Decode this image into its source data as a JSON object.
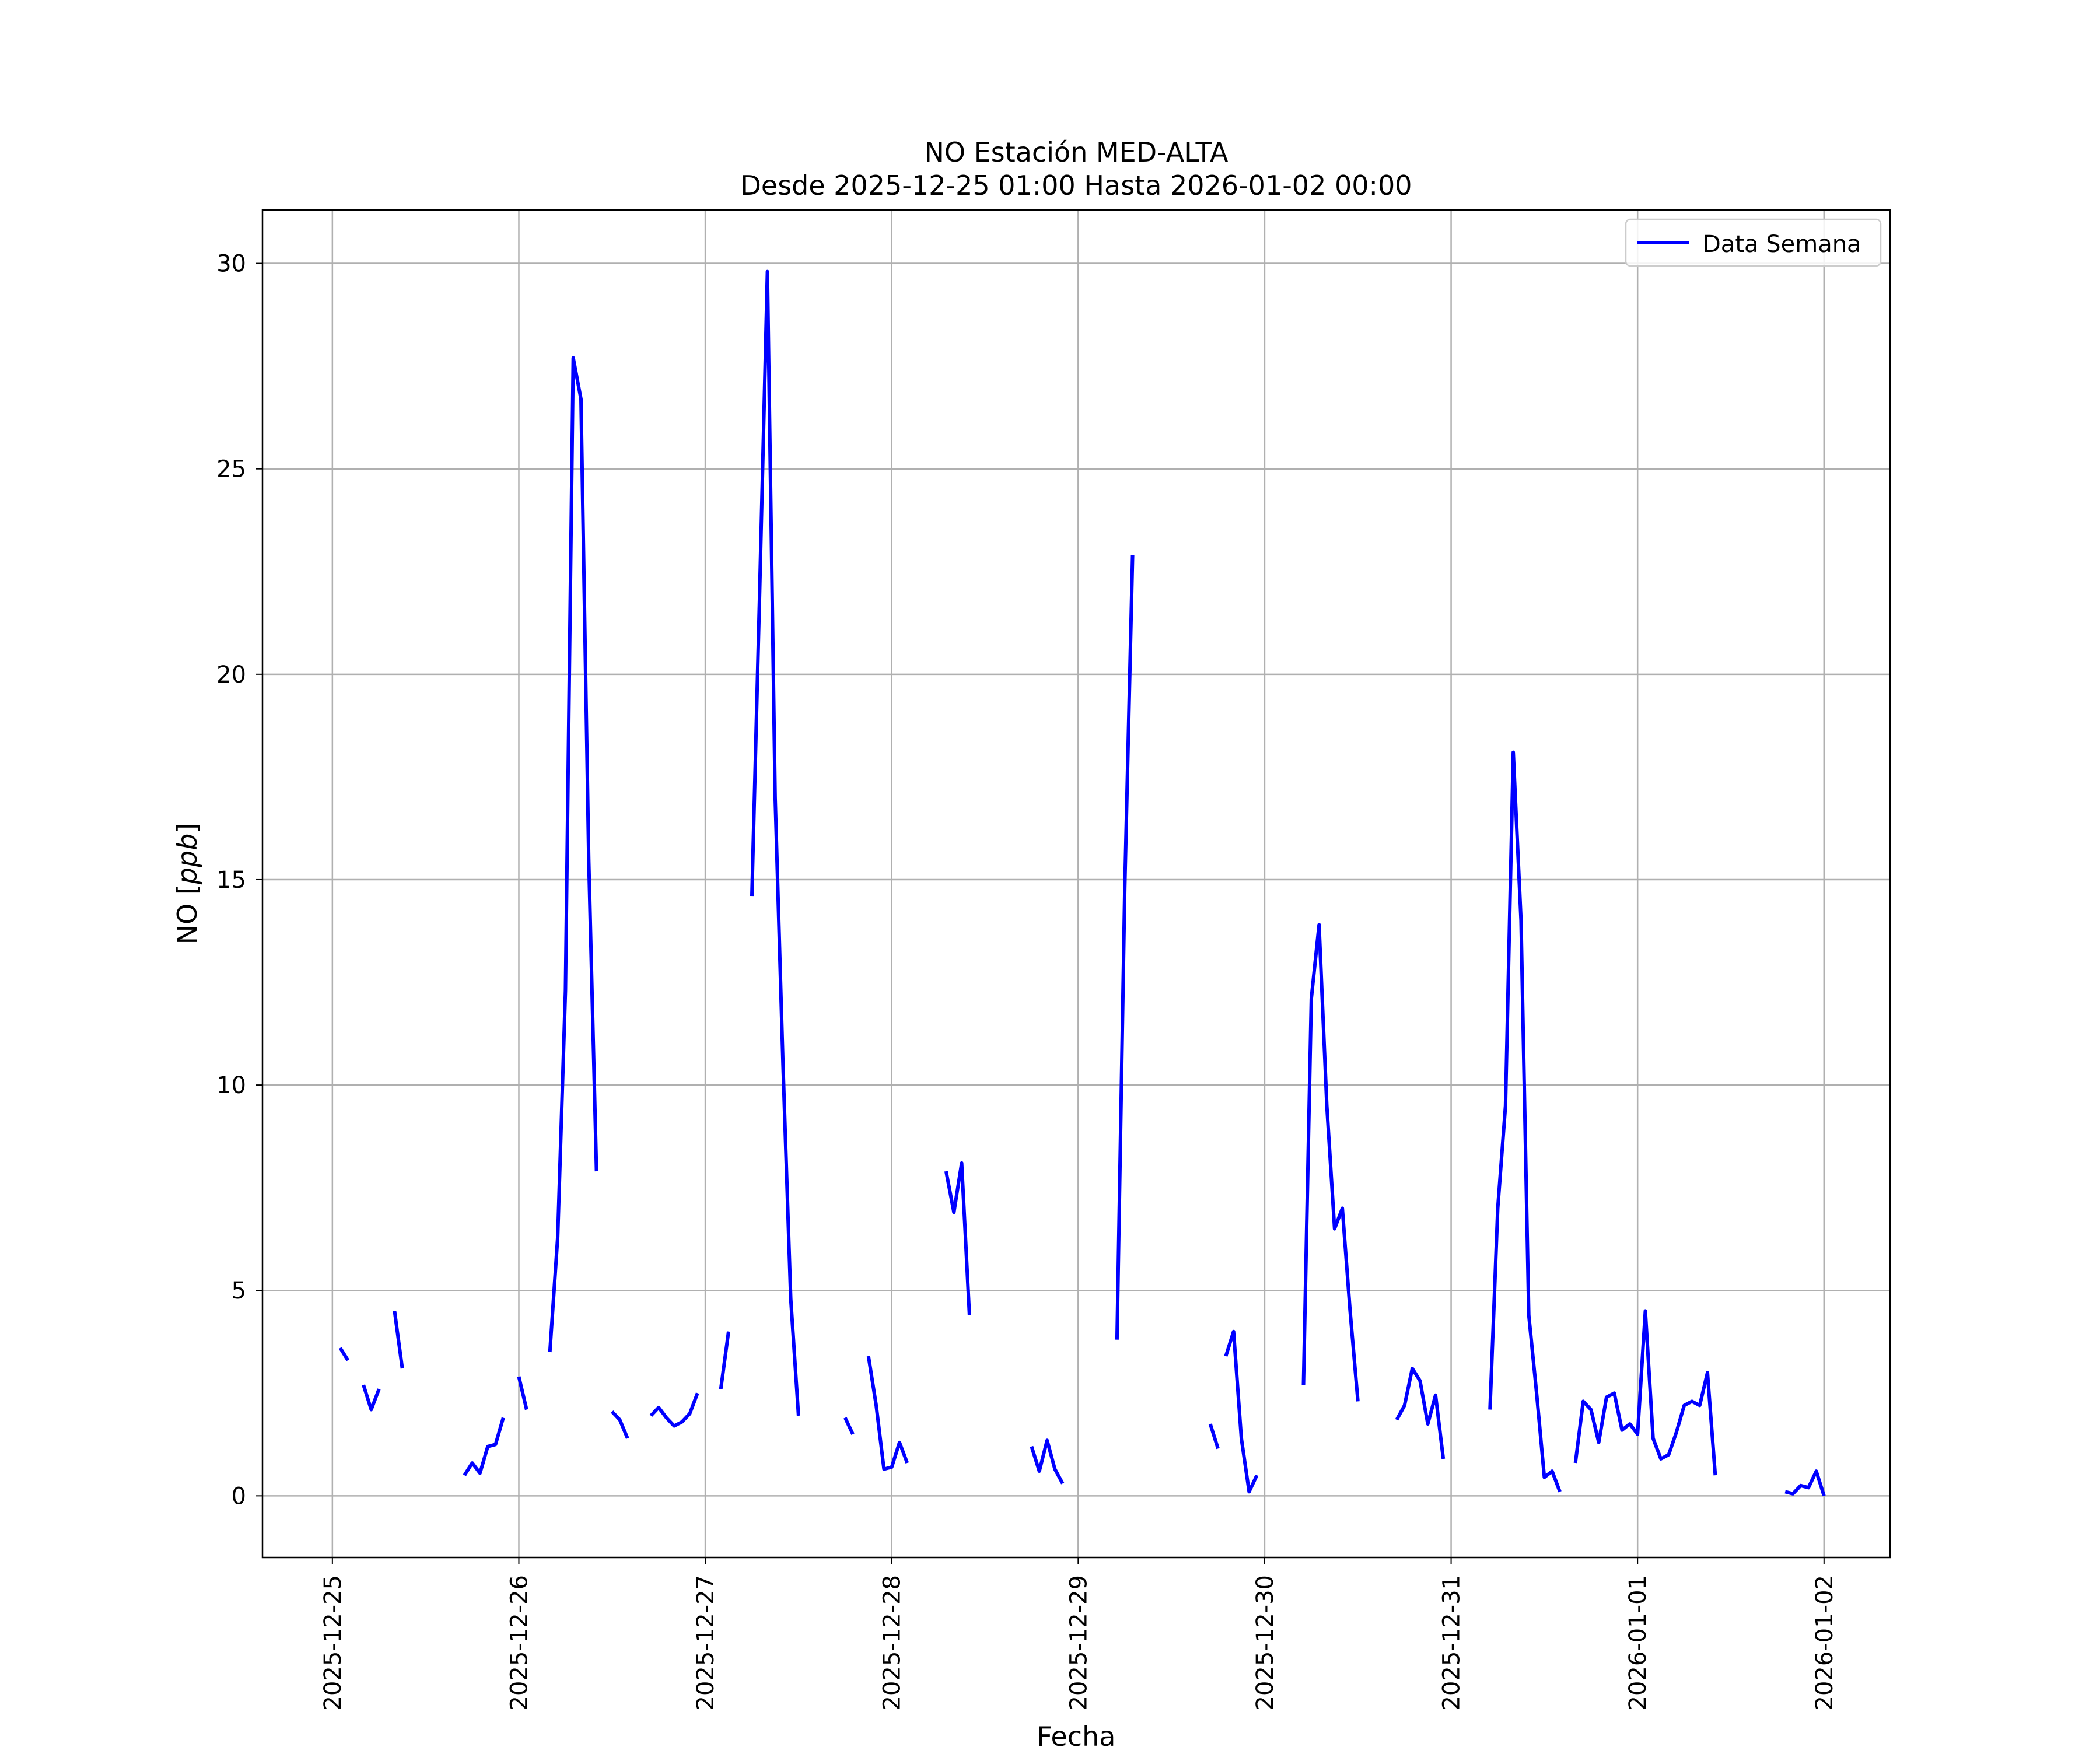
{
  "chart_data": {
    "type": "line",
    "title": "NO Estación MED-ALTA",
    "subtitle": "Desde 2025-12-25 01:00 Hasta 2026-01-02 00:00",
    "xlabel": "Fecha",
    "ylabel_prefix": "NO [",
    "ylabel_unit": "ppb",
    "ylabel_suffix": "]",
    "x_tick_labels": [
      "2025-12-25",
      "2025-12-26",
      "2025-12-27",
      "2025-12-28",
      "2025-12-29",
      "2025-12-30",
      "2025-12-31",
      "2026-01-01",
      "2026-01-02"
    ],
    "y_tick_labels": [
      "0",
      "5",
      "10",
      "15",
      "20",
      "25",
      "30"
    ],
    "y_ticks": [
      0,
      5,
      10,
      15,
      20,
      25,
      30
    ],
    "xlim": [
      "2025-12-24 15:00",
      "2026-01-02 08:30"
    ],
    "ylim": [
      -1.5,
      31.3
    ],
    "grid": true,
    "legend_position": "top-right",
    "series": [
      {
        "name": "Data Semana",
        "color": "#0000ff",
        "segments": [
          [
            [
              "2025-12-25 01:00",
              3.6
            ],
            [
              "2025-12-25 02:00",
              3.3
            ]
          ],
          [
            [
              "2025-12-25 04:00",
              2.7
            ],
            [
              "2025-12-25 05:00",
              2.1
            ],
            [
              "2025-12-25 06:00",
              2.6
            ]
          ],
          [
            [
              "2025-12-25 08:00",
              4.5
            ],
            [
              "2025-12-25 09:00",
              3.1
            ]
          ],
          [
            [
              "2025-12-25 17:00",
              0.5
            ],
            [
              "2025-12-25 18:00",
              0.8
            ],
            [
              "2025-12-25 19:00",
              0.55
            ],
            [
              "2025-12-25 20:00",
              1.2
            ],
            [
              "2025-12-25 21:00",
              1.25
            ],
            [
              "2025-12-25 22:00",
              1.9
            ]
          ],
          [
            [
              "2025-12-26 00:00",
              2.9
            ],
            [
              "2025-12-26 01:00",
              2.1
            ]
          ],
          [
            [
              "2025-12-26 04:00",
              3.5
            ],
            [
              "2025-12-26 05:00",
              6.3
            ],
            [
              "2025-12-26 06:00",
              12.3
            ],
            [
              "2025-12-26 07:00",
              27.7
            ],
            [
              "2025-12-26 08:00",
              26.7
            ],
            [
              "2025-12-26 09:00",
              15.5
            ],
            [
              "2025-12-26 10:00",
              7.9
            ]
          ],
          [
            [
              "2025-12-26 12:00",
              2.05
            ],
            [
              "2025-12-26 13:00",
              1.85
            ],
            [
              "2025-12-26 14:00",
              1.4
            ]
          ],
          [
            [
              "2025-12-26 17:00",
              1.95
            ],
            [
              "2025-12-26 18:00",
              2.15
            ],
            [
              "2025-12-26 19:00",
              1.9
            ],
            [
              "2025-12-26 20:00",
              1.7
            ],
            [
              "2025-12-26 21:00",
              1.8
            ],
            [
              "2025-12-26 22:00",
              2.0
            ],
            [
              "2025-12-26 23:00",
              2.5
            ]
          ],
          [
            [
              "2025-12-27 02:00",
              2.6
            ],
            [
              "2025-12-27 03:00",
              4.0
            ]
          ],
          [
            [
              "2025-12-27 06:00",
              14.6
            ],
            [
              "2025-12-27 07:00",
              22.0
            ],
            [
              "2025-12-27 08:00",
              29.8
            ],
            [
              "2025-12-27 09:00",
              17.0
            ],
            [
              "2025-12-27 10:00",
              10.5
            ],
            [
              "2025-12-27 11:00",
              4.8
            ],
            [
              "2025-12-27 12:00",
              1.95
            ]
          ],
          [
            [
              "2025-12-27 18:00",
              1.9
            ],
            [
              "2025-12-27 19:00",
              1.5
            ]
          ],
          [
            [
              "2025-12-27 21:00",
              3.4
            ],
            [
              "2025-12-27 22:00",
              2.2
            ],
            [
              "2025-12-27 23:00",
              0.65
            ],
            [
              "2025-12-28 00:00",
              0.7
            ],
            [
              "2025-12-28 01:00",
              1.3
            ],
            [
              "2025-12-28 02:00",
              0.8
            ]
          ],
          [
            [
              "2025-12-28 07:00",
              7.9
            ],
            [
              "2025-12-28 08:00",
              6.9
            ],
            [
              "2025-12-28 09:00",
              8.1
            ],
            [
              "2025-12-28 10:00",
              4.4
            ]
          ],
          [
            [
              "2025-12-28 18:00",
              1.2
            ],
            [
              "2025-12-28 19:00",
              0.6
            ],
            [
              "2025-12-28 20:00",
              1.35
            ],
            [
              "2025-12-28 21:00",
              0.65
            ],
            [
              "2025-12-28 22:00",
              0.3
            ]
          ],
          [
            [
              "2025-12-29 05:00",
              3.8
            ],
            [
              "2025-12-29 06:00",
              14.8
            ],
            [
              "2025-12-29 07:00",
              22.9
            ]
          ],
          [
            [
              "2025-12-29 17:00",
              1.75
            ],
            [
              "2025-12-29 18:00",
              1.15
            ]
          ],
          [
            [
              "2025-12-29 19:00",
              3.4
            ],
            [
              "2025-12-29 20:00",
              4.0
            ],
            [
              "2025-12-29 21:00",
              1.4
            ],
            [
              "2025-12-29 22:00",
              0.1
            ],
            [
              "2025-12-29 23:00",
              0.5
            ]
          ],
          [
            [
              "2025-12-30 05:00",
              2.7
            ],
            [
              "2025-12-30 06:00",
              12.1
            ],
            [
              "2025-12-30 07:00",
              13.9
            ],
            [
              "2025-12-30 08:00",
              9.5
            ],
            [
              "2025-12-30 09:00",
              6.5
            ],
            [
              "2025-12-30 10:00",
              7.0
            ],
            [
              "2025-12-30 11:00",
              4.5
            ],
            [
              "2025-12-30 12:00",
              2.3
            ]
          ],
          [
            [
              "2025-12-30 17:00",
              1.85
            ],
            [
              "2025-12-30 18:00",
              2.2
            ],
            [
              "2025-12-30 19:00",
              3.1
            ],
            [
              "2025-12-30 20:00",
              2.8
            ],
            [
              "2025-12-30 21:00",
              1.75
            ],
            [
              "2025-12-30 22:00",
              2.45
            ],
            [
              "2025-12-30 23:00",
              0.9
            ]
          ],
          [
            [
              "2025-12-31 05:00",
              2.1
            ],
            [
              "2025-12-31 06:00",
              7.0
            ],
            [
              "2025-12-31 07:00",
              9.5
            ],
            [
              "2025-12-31 08:00",
              18.1
            ],
            [
              "2025-12-31 09:00",
              14.0
            ],
            [
              "2025-12-31 10:00",
              4.4
            ],
            [
              "2025-12-31 11:00",
              2.5
            ],
            [
              "2025-12-31 12:00",
              0.45
            ],
            [
              "2025-12-31 13:00",
              0.6
            ],
            [
              "2025-12-31 14:00",
              0.1
            ]
          ],
          [
            [
              "2025-12-31 16:00",
              0.8
            ],
            [
              "2025-12-31 17:00",
              2.3
            ],
            [
              "2025-12-31 18:00",
              2.1
            ],
            [
              "2025-12-31 19:00",
              1.3
            ],
            [
              "2025-12-31 20:00",
              2.4
            ],
            [
              "2025-12-31 21:00",
              2.5
            ],
            [
              "2025-12-31 22:00",
              1.6
            ],
            [
              "2025-12-31 23:00",
              1.75
            ],
            [
              "2026-01-01 00:00",
              1.5
            ],
            [
              "2026-01-01 01:00",
              4.5
            ],
            [
              "2026-01-01 02:00",
              1.4
            ],
            [
              "2026-01-01 03:00",
              0.9
            ],
            [
              "2026-01-01 04:00",
              1.0
            ],
            [
              "2026-01-01 05:00",
              1.55
            ],
            [
              "2026-01-01 06:00",
              2.2
            ],
            [
              "2026-01-01 07:00",
              2.3
            ],
            [
              "2026-01-01 08:00",
              2.2
            ],
            [
              "2026-01-01 09:00",
              3.0
            ],
            [
              "2026-01-01 10:00",
              0.5
            ]
          ],
          [
            [
              "2026-01-01 19:00",
              0.1
            ],
            [
              "2026-01-01 20:00",
              0.05
            ],
            [
              "2026-01-01 21:00",
              0.25
            ],
            [
              "2026-01-01 22:00",
              0.2
            ],
            [
              "2026-01-01 23:00",
              0.6
            ],
            [
              "2026-01-02 00:00",
              0.0
            ]
          ]
        ]
      }
    ]
  }
}
